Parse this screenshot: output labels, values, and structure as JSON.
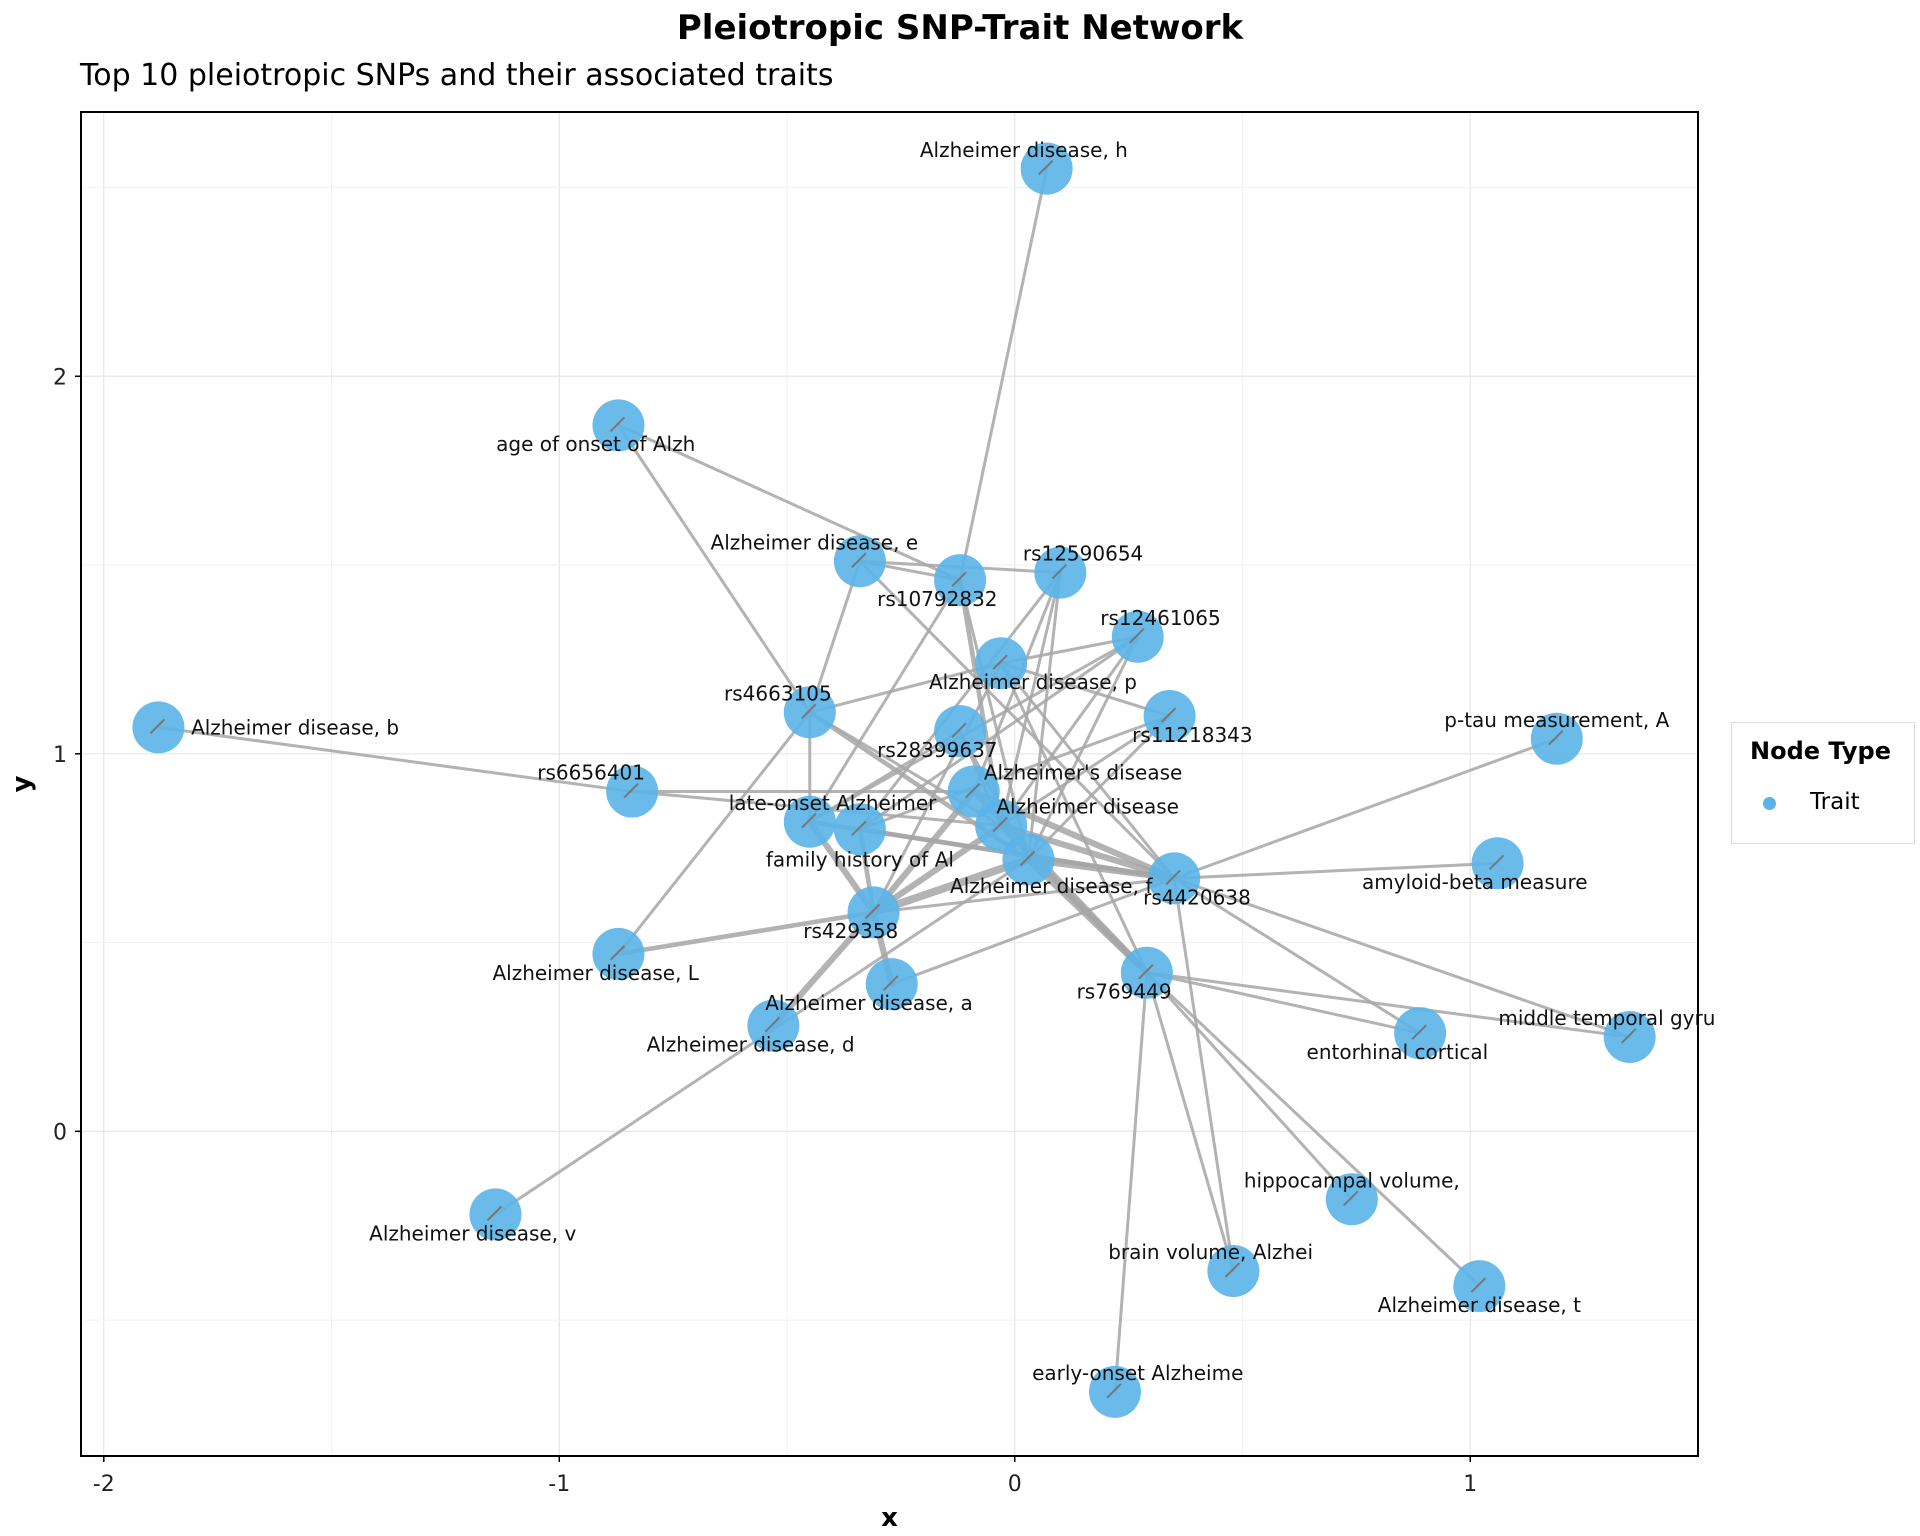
{
  "chart_data": {
    "type": "network",
    "title": "Pleiotropic SNP-Trait Network",
    "subtitle": "Top 10 pleiotropic SNPs and their associated traits",
    "xlabel": "x",
    "ylabel": "y",
    "xlim": [
      -2.05,
      1.5
    ],
    "ylim": [
      -0.86,
      2.7
    ],
    "x_ticks": [
      -2,
      -1,
      0,
      1
    ],
    "y_ticks": [
      0,
      1,
      2
    ],
    "grid": true,
    "node_color": "#5ab4e8",
    "edge_color": "#a6a6a6",
    "legend": {
      "title": "Node Type",
      "position": "right",
      "items": [
        {
          "label": "Trait",
          "color": "#5ab4e8"
        }
      ]
    },
    "nodes": [
      {
        "id": "ad_h",
        "label": "Alzheimer disease, h",
        "x": 0.07,
        "y": 2.55,
        "label_dx": -0.05,
        "label_dy": 0.05
      },
      {
        "id": "age_onset",
        "label": "age of onset of Alzh",
        "x": -0.87,
        "y": 1.87,
        "label_dx": -0.05,
        "label_dy": -0.05
      },
      {
        "id": "ad_e",
        "label": "Alzheimer disease, e",
        "x": -0.34,
        "y": 1.51,
        "label_dx": -0.1,
        "label_dy": 0.05
      },
      {
        "id": "rs10792832",
        "label": "rs10792832",
        "x": -0.12,
        "y": 1.46,
        "label_dx": -0.05,
        "label_dy": -0.05
      },
      {
        "id": "rs12590654",
        "label": "rs12590654",
        "x": 0.1,
        "y": 1.48,
        "label_dx": 0.05,
        "label_dy": 0.05
      },
      {
        "id": "rs12461065",
        "label": "rs12461065",
        "x": 0.27,
        "y": 1.31,
        "label_dx": 0.05,
        "label_dy": 0.05
      },
      {
        "id": "ad_p",
        "label": "Alzheimer disease, p",
        "x": -0.03,
        "y": 1.24,
        "label_dx": 0.07,
        "label_dy": -0.05
      },
      {
        "id": "rs4663105",
        "label": "rs4663105",
        "x": -0.45,
        "y": 1.11,
        "label_dx": -0.07,
        "label_dy": 0.05
      },
      {
        "id": "rs11218343",
        "label": "rs11218343",
        "x": 0.34,
        "y": 1.1,
        "label_dx": 0.05,
        "label_dy": -0.05
      },
      {
        "id": "ad_b",
        "label": "Alzheimer disease, b",
        "x": -1.88,
        "y": 1.07,
        "label_dx": 0.3,
        "label_dy": 0.0
      },
      {
        "id": "rs28399637",
        "label": "rs28399637",
        "x": -0.12,
        "y": 1.06,
        "label_dx": -0.05,
        "label_dy": -0.05
      },
      {
        "id": "ptau",
        "label": "p-tau measurement, A",
        "x": 1.19,
        "y": 1.04,
        "label_dx": 0.0,
        "label_dy": 0.05
      },
      {
        "id": "rs6656401",
        "label": "rs6656401",
        "x": -0.84,
        "y": 0.9,
        "label_dx": -0.09,
        "label_dy": 0.05
      },
      {
        "id": "alz_disease_apos",
        "label": "Alzheimer's disease",
        "x": -0.09,
        "y": 0.9,
        "label_dx": 0.24,
        "label_dy": 0.05
      },
      {
        "id": "lateonset",
        "label": "late-onset Alzheimer",
        "x": -0.45,
        "y": 0.82,
        "label_dx": 0.05,
        "label_dy": 0.05
      },
      {
        "id": "family_hist",
        "label": "family history of Al",
        "x": -0.34,
        "y": 0.8,
        "label_dx": 0.0,
        "label_dy": -0.08
      },
      {
        "id": "alz_disease",
        "label": "Alzheimer disease",
        "x": -0.03,
        "y": 0.81,
        "label_dx": 0.19,
        "label_dy": 0.05
      },
      {
        "id": "ad_f",
        "label": "Alzheimer disease, f",
        "x": 0.03,
        "y": 0.72,
        "label_dx": 0.05,
        "label_dy": -0.07
      },
      {
        "id": "amyloid",
        "label": "amyloid-beta measure",
        "x": 1.06,
        "y": 0.71,
        "label_dx": -0.05,
        "label_dy": -0.05
      },
      {
        "id": "rs4420638",
        "label": "rs4420638",
        "x": 0.35,
        "y": 0.67,
        "label_dx": 0.05,
        "label_dy": -0.05
      },
      {
        "id": "rs429358",
        "label": "rs429358",
        "x": -0.31,
        "y": 0.58,
        "label_dx": -0.05,
        "label_dy": -0.05
      },
      {
        "id": "ad_L",
        "label": "Alzheimer disease, L",
        "x": -0.87,
        "y": 0.47,
        "label_dx": -0.05,
        "label_dy": -0.05
      },
      {
        "id": "rs769449",
        "label": "rs769449",
        "x": 0.29,
        "y": 0.42,
        "label_dx": -0.05,
        "label_dy": -0.05
      },
      {
        "id": "ad_a",
        "label": "Alzheimer disease, a",
        "x": -0.27,
        "y": 0.39,
        "label_dx": -0.05,
        "label_dy": -0.05
      },
      {
        "id": "ad_d",
        "label": "Alzheimer disease, d",
        "x": -0.53,
        "y": 0.28,
        "label_dx": -0.05,
        "label_dy": -0.05
      },
      {
        "id": "entorhinal",
        "label": "entorhinal cortical",
        "x": 0.89,
        "y": 0.26,
        "label_dx": -0.05,
        "label_dy": -0.05
      },
      {
        "id": "midtemporal",
        "label": "middle temporal gyru",
        "x": 1.35,
        "y": 0.25,
        "label_dx": -0.05,
        "label_dy": 0.05
      },
      {
        "id": "ad_v",
        "label": "Alzheimer disease, v",
        "x": -1.14,
        "y": -0.22,
        "label_dx": -0.05,
        "label_dy": -0.05
      },
      {
        "id": "hippocampal",
        "label": "hippocampal volume,",
        "x": 0.74,
        "y": -0.18,
        "label_dx": 0.0,
        "label_dy": 0.05
      },
      {
        "id": "brainvol",
        "label": "brain volume, Alzhei",
        "x": 0.48,
        "y": -0.37,
        "label_dx": -0.05,
        "label_dy": 0.05
      },
      {
        "id": "ad_t",
        "label": "Alzheimer disease, t",
        "x": 1.02,
        "y": -0.41,
        "label_dx": 0.0,
        "label_dy": -0.05
      },
      {
        "id": "earlyonset",
        "label": "early-onset Alzheime",
        "x": 0.22,
        "y": -0.69,
        "label_dx": 0.05,
        "label_dy": 0.05
      }
    ],
    "edges": [
      {
        "source": "ad_h",
        "target": "rs10792832",
        "weight": 1
      },
      {
        "source": "age_onset",
        "target": "rs10792832",
        "weight": 1
      },
      {
        "source": "age_onset",
        "target": "rs4663105",
        "weight": 1
      },
      {
        "source": "ad_e",
        "target": "rs12590654",
        "weight": 1
      },
      {
        "source": "ad_e",
        "target": "rs10792832",
        "weight": 1
      },
      {
        "source": "ad_e",
        "target": "rs4663105",
        "weight": 1
      },
      {
        "source": "ad_e",
        "target": "rs4420638",
        "weight": 1
      },
      {
        "source": "rs10792832",
        "target": "alz_disease",
        "weight": 2
      },
      {
        "source": "rs10792832",
        "target": "lateonset",
        "weight": 1
      },
      {
        "source": "rs10792832",
        "target": "ad_f",
        "weight": 1
      },
      {
        "source": "rs12590654",
        "target": "alz_disease",
        "weight": 1
      },
      {
        "source": "rs12590654",
        "target": "alz_disease_apos",
        "weight": 1
      },
      {
        "source": "rs12590654",
        "target": "family_hist",
        "weight": 1
      },
      {
        "source": "rs12590654",
        "target": "ad_f",
        "weight": 1
      },
      {
        "source": "rs12461065",
        "target": "alz_disease",
        "weight": 1
      },
      {
        "source": "rs12461065",
        "target": "ad_p",
        "weight": 1
      },
      {
        "source": "rs12461065",
        "target": "lateonset",
        "weight": 1
      },
      {
        "source": "rs12461065",
        "target": "family_hist",
        "weight": 1
      },
      {
        "source": "rs12461065",
        "target": "ad_f",
        "weight": 1
      },
      {
        "source": "ad_p",
        "target": "rs4663105",
        "weight": 1
      },
      {
        "source": "ad_p",
        "target": "rs11218343",
        "weight": 1
      },
      {
        "source": "ad_p",
        "target": "rs4420638",
        "weight": 1
      },
      {
        "source": "ad_p",
        "target": "rs429358",
        "weight": 1
      },
      {
        "source": "rs4663105",
        "target": "alz_disease",
        "weight": 1
      },
      {
        "source": "rs4663105",
        "target": "lateonset",
        "weight": 1
      },
      {
        "source": "rs4663105",
        "target": "ad_f",
        "weight": 2
      },
      {
        "source": "rs4663105",
        "target": "ad_L",
        "weight": 1
      },
      {
        "source": "rs11218343",
        "target": "alz_disease",
        "weight": 1
      },
      {
        "source": "rs11218343",
        "target": "family_hist",
        "weight": 1
      },
      {
        "source": "rs11218343",
        "target": "ad_f",
        "weight": 1
      },
      {
        "source": "ad_b",
        "target": "rs6656401",
        "weight": 1
      },
      {
        "source": "rs28399637",
        "target": "alz_disease",
        "weight": 1
      },
      {
        "source": "rs28399637",
        "target": "lateonset",
        "weight": 1
      },
      {
        "source": "rs28399637",
        "target": "ad_f",
        "weight": 1
      },
      {
        "source": "ptau",
        "target": "rs4420638",
        "weight": 1
      },
      {
        "source": "rs6656401",
        "target": "alz_disease_apos",
        "weight": 1
      },
      {
        "source": "rs6656401",
        "target": "alz_disease",
        "weight": 1
      },
      {
        "source": "rs4420638",
        "target": "alz_disease_apos",
        "weight": 3
      },
      {
        "source": "rs4420638",
        "target": "alz_disease",
        "weight": 3
      },
      {
        "source": "rs4420638",
        "target": "lateonset",
        "weight": 2
      },
      {
        "source": "rs4420638",
        "target": "family_hist",
        "weight": 2
      },
      {
        "source": "rs4420638",
        "target": "ad_f",
        "weight": 3
      },
      {
        "source": "rs4420638",
        "target": "amyloid",
        "weight": 1
      },
      {
        "source": "rs4420638",
        "target": "midtemporal",
        "weight": 1
      },
      {
        "source": "rs4420638",
        "target": "entorhinal",
        "weight": 1
      },
      {
        "source": "rs4420638",
        "target": "brainvol",
        "weight": 1
      },
      {
        "source": "rs429358",
        "target": "alz_disease_apos",
        "weight": 3
      },
      {
        "source": "rs429358",
        "target": "alz_disease",
        "weight": 3
      },
      {
        "source": "rs429358",
        "target": "lateonset",
        "weight": 3
      },
      {
        "source": "rs429358",
        "target": "family_hist",
        "weight": 2
      },
      {
        "source": "rs429358",
        "target": "ad_f",
        "weight": 4
      },
      {
        "source": "rs429358",
        "target": "ad_L",
        "weight": 2
      },
      {
        "source": "rs429358",
        "target": "ad_a",
        "weight": 3
      },
      {
        "source": "rs429358",
        "target": "ad_d",
        "weight": 3
      },
      {
        "source": "rs429358",
        "target": "rs4420638",
        "weight": 1
      },
      {
        "source": "rs769449",
        "target": "alz_disease_apos",
        "weight": 3
      },
      {
        "source": "rs769449",
        "target": "alz_disease",
        "weight": 3
      },
      {
        "source": "rs769449",
        "target": "ad_f",
        "weight": 3
      },
      {
        "source": "rs769449",
        "target": "entorhinal",
        "weight": 1
      },
      {
        "source": "rs769449",
        "target": "midtemporal",
        "weight": 1
      },
      {
        "source": "rs769449",
        "target": "hippocampal",
        "weight": 1
      },
      {
        "source": "rs769449",
        "target": "ad_t",
        "weight": 1
      },
      {
        "source": "rs769449",
        "target": "brainvol",
        "weight": 1
      },
      {
        "source": "rs769449",
        "target": "earlyonset",
        "weight": 1
      },
      {
        "source": "rs769449",
        "target": "ad_p",
        "weight": 1
      },
      {
        "source": "ad_a",
        "target": "rs4420638",
        "weight": 1
      },
      {
        "source": "ad_v",
        "target": "ad_f",
        "weight": 1
      }
    ]
  }
}
